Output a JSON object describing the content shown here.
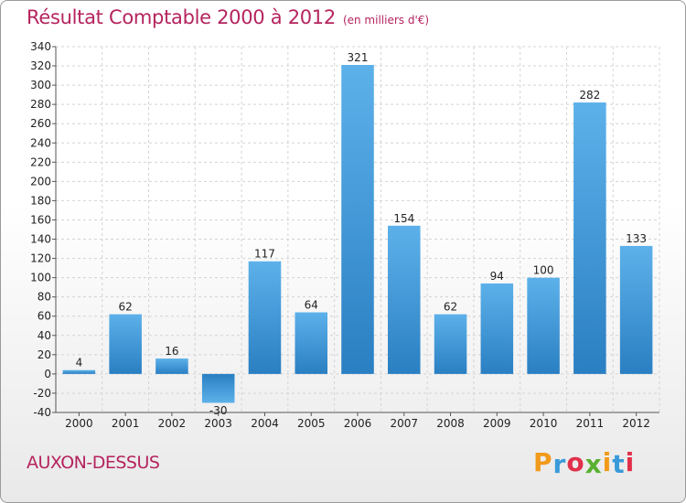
{
  "page": {
    "title": "Résultat Comptable 2000 à 2012",
    "subtitle": "(en milliers d'€)",
    "commune": "AUXON-DESSUS",
    "logo": {
      "letters": [
        {
          "char": "P",
          "color": "#f29a1a"
        },
        {
          "char": "r",
          "color": "#3a9ad9"
        },
        {
          "char": "o",
          "color": "#e2304a"
        },
        {
          "char": "x",
          "color": "#5ab030"
        },
        {
          "char": "i",
          "color": "#f29a1a"
        },
        {
          "char": "t",
          "color": "#3a9ad9"
        },
        {
          "char": "i",
          "color": "#e2304a"
        }
      ]
    }
  },
  "chart_data": {
    "type": "bar",
    "title": "Résultat Comptable 2000 à 2012",
    "subtitle": "(en milliers d'€)",
    "xlabel": "",
    "ylabel": "",
    "categories": [
      "2000",
      "2001",
      "2002",
      "2003",
      "2004",
      "2005",
      "2006",
      "2007",
      "2008",
      "2009",
      "2010",
      "2011",
      "2012"
    ],
    "values": [
      4,
      62,
      16,
      -30,
      117,
      64,
      321,
      154,
      62,
      94,
      100,
      282,
      133
    ],
    "ylim": [
      -40,
      340
    ],
    "yticks": [
      -40,
      -20,
      0,
      20,
      40,
      60,
      80,
      100,
      120,
      140,
      160,
      180,
      200,
      220,
      240,
      260,
      280,
      300,
      320,
      340
    ],
    "grid": true,
    "bar_color": "#3d94d6"
  }
}
